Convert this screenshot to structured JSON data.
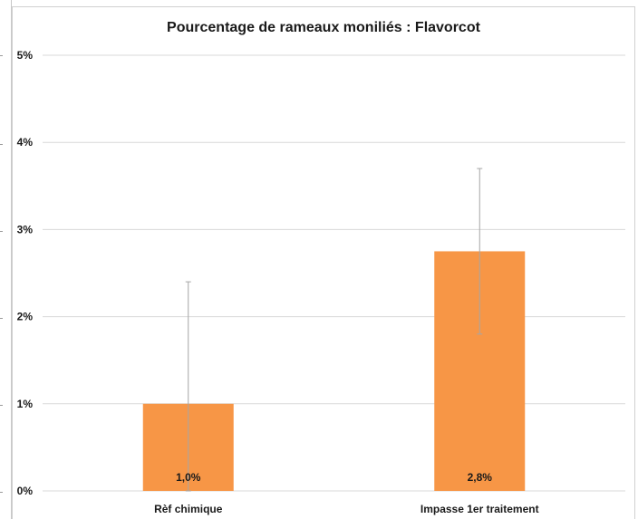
{
  "chart_data": {
    "type": "bar",
    "title": "Pourcentage de rameaux moniliés : Flavorcot",
    "xlabel": "",
    "ylabel": "",
    "categories": [
      "Rèf chimique",
      "Impasse 1er traitement"
    ],
    "series": [
      {
        "values": [
          1.0,
          2.75
        ],
        "data_labels": [
          "1,0%",
          "2,8%"
        ],
        "error_high": [
          2.4,
          3.7
        ],
        "error_low": [
          0.0,
          1.8
        ],
        "color": "#f79646"
      }
    ],
    "ylim": [
      0,
      5
    ],
    "yticks": [
      0,
      1,
      2,
      3,
      4,
      5
    ],
    "ytick_labels": [
      "0%",
      "1%",
      "2%",
      "3%",
      "4%",
      "5%"
    ],
    "grid": true,
    "legend": "none"
  }
}
